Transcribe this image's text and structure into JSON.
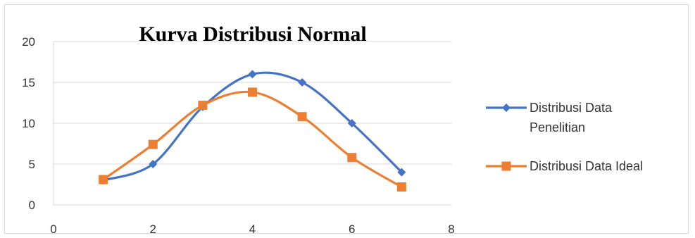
{
  "chart_data": {
    "type": "scatter",
    "title": "Kurva Distribusi Normal",
    "xlabel": "",
    "ylabel": "",
    "xlim": [
      0,
      8
    ],
    "ylim": [
      0,
      20
    ],
    "x_ticks": [
      "0",
      "2",
      "4",
      "6",
      "8"
    ],
    "y_ticks": [
      "0",
      "5",
      "10",
      "15",
      "20"
    ],
    "grid": "horizontal",
    "legend_position": "right",
    "smooth_lines": true,
    "series": [
      {
        "name": "Distribusi Data Penelitian",
        "name_lines": [
          "Distribusi Data",
          "Penelitian"
        ],
        "marker": "diamond",
        "color": "#4472C4",
        "x": [
          1,
          2,
          3,
          4,
          5,
          6,
          7
        ],
        "y": [
          3,
          5,
          12,
          16,
          15,
          10,
          4
        ]
      },
      {
        "name": "Distribusi Data Ideal",
        "name_lines": [
          "Distribusi Data Ideal"
        ],
        "marker": "square",
        "color": "#ED7D31",
        "x": [
          1,
          2,
          3,
          4,
          5,
          6,
          7
        ],
        "y": [
          3.1,
          7.4,
          12.2,
          13.8,
          10.8,
          5.8,
          2.2
        ]
      }
    ]
  }
}
